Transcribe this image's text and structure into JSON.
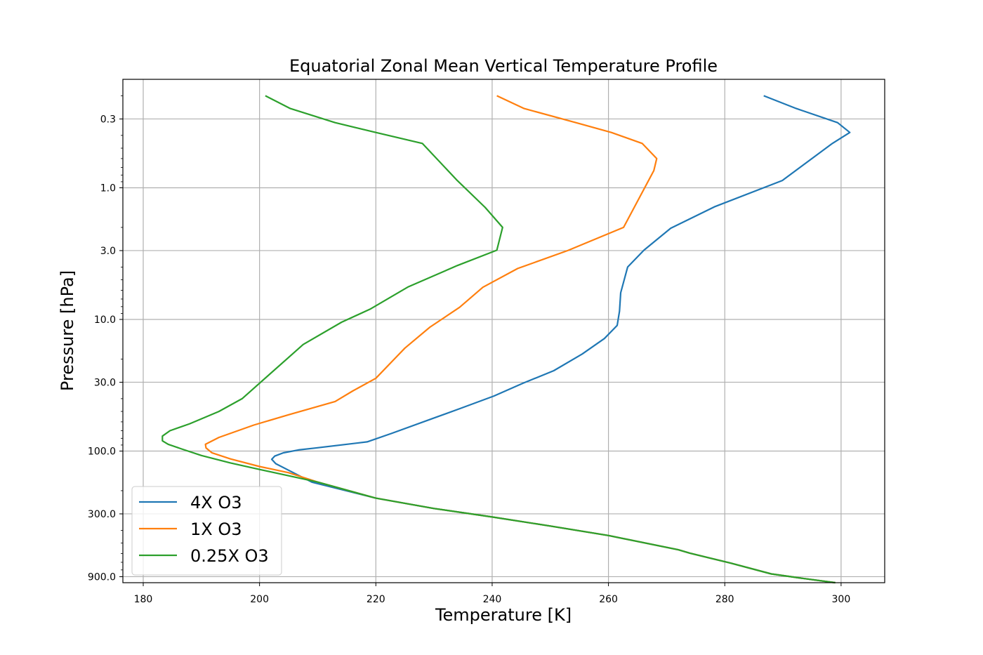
{
  "chart_data": {
    "type": "line",
    "title": "Equatorial Zonal Mean Vertical Temperature Profile",
    "xlabel": "Temperature [K]",
    "ylabel": "Pressure [hPa]",
    "xlim": [
      176.5,
      307.5
    ],
    "ylim_pressure_log": [
      0.15,
      1000
    ],
    "y_inverted": true,
    "y_scale": "log",
    "grid": true,
    "legend_position": "lower-left",
    "x_ticks": [
      180,
      200,
      220,
      240,
      260,
      280,
      300
    ],
    "x_tick_labels": [
      "180",
      "200",
      "220",
      "240",
      "260",
      "280",
      "300"
    ],
    "y_ticks": [
      0.3,
      1.0,
      3.0,
      10.0,
      30.0,
      100.0,
      300.0,
      900.0
    ],
    "y_tick_labels": [
      "0.3",
      "1.0",
      "3.0",
      "10.0",
      "30.0",
      "100.0",
      "300.0",
      "900.0"
    ],
    "series": [
      {
        "name": "4X O3",
        "color": "#1f77b4",
        "points": [
          [
            286.7,
            0.2
          ],
          [
            292.3,
            0.25
          ],
          [
            299.4,
            0.32
          ],
          [
            301.5,
            0.38
          ],
          [
            298.5,
            0.46
          ],
          [
            289.9,
            0.88
          ],
          [
            278.3,
            1.39
          ],
          [
            270.7,
            2.03
          ],
          [
            266.1,
            2.98
          ],
          [
            263.3,
            4.0
          ],
          [
            262.1,
            6.27
          ],
          [
            261.9,
            8.66
          ],
          [
            261.5,
            11.1
          ],
          [
            259.3,
            13.97
          ],
          [
            255.5,
            18.3
          ],
          [
            250.6,
            24.5
          ],
          [
            245.3,
            30.55
          ],
          [
            240.3,
            38.2
          ],
          [
            234.5,
            47.5
          ],
          [
            229.9,
            56.3
          ],
          [
            222.7,
            73.5
          ],
          [
            218.5,
            85.1
          ],
          [
            209.6,
            94.9
          ],
          [
            206.7,
            98.1
          ],
          [
            204.1,
            103.1
          ],
          [
            202.6,
            109.2
          ],
          [
            202.1,
            115.5
          ],
          [
            202.8,
            124.7
          ],
          [
            205.0,
            139.9
          ],
          [
            209.0,
            172.3
          ],
          [
            220.0,
            228.0
          ],
          [
            230.0,
            273.0
          ],
          [
            240.0,
            317.0
          ],
          [
            250.0,
            371.0
          ],
          [
            260.0,
            438.0
          ],
          [
            272.0,
            562.0
          ],
          [
            274.0,
            596.0
          ],
          [
            281.0,
            710.0
          ],
          [
            288.0,
            858.0
          ],
          [
            293.0,
            922.0
          ],
          [
            299.0,
            1000.0
          ]
        ]
      },
      {
        "name": "1X O3",
        "color": "#ff7f0e",
        "points": [
          [
            240.8,
            0.2
          ],
          [
            245.5,
            0.25
          ],
          [
            254.4,
            0.32
          ],
          [
            260.5,
            0.38
          ],
          [
            265.8,
            0.46
          ],
          [
            268.3,
            0.6
          ],
          [
            267.8,
            0.74
          ],
          [
            262.6,
            2.0
          ],
          [
            253.0,
            3.0
          ],
          [
            244.4,
            4.1
          ],
          [
            238.4,
            5.7
          ],
          [
            234.4,
            8.09
          ],
          [
            229.3,
            11.45
          ],
          [
            225.0,
            16.5
          ],
          [
            220.0,
            28.0
          ],
          [
            216.0,
            35.0
          ],
          [
            213.0,
            42.0
          ],
          [
            205.0,
            53.0
          ],
          [
            199.0,
            63.5
          ],
          [
            193.0,
            78.8
          ],
          [
            190.7,
            88.9
          ],
          [
            190.8,
            94.6
          ],
          [
            191.8,
            103.0
          ],
          [
            195.0,
            114.8
          ],
          [
            200.0,
            131.0
          ],
          [
            205.0,
            146.0
          ],
          [
            210.0,
            172.0
          ],
          [
            220.0,
            228.0
          ],
          [
            230.0,
            273.0
          ],
          [
            240.0,
            317.0
          ],
          [
            250.0,
            371.0
          ],
          [
            260.0,
            438.0
          ],
          [
            272.0,
            562.0
          ],
          [
            274.0,
            596.0
          ],
          [
            281.0,
            710.0
          ],
          [
            288.0,
            858.0
          ],
          [
            293.0,
            922.0
          ],
          [
            299.0,
            1000.0
          ]
        ]
      },
      {
        "name": "0.25X O3",
        "color": "#2ca02c",
        "points": [
          [
            201.0,
            0.2
          ],
          [
            205.3,
            0.25
          ],
          [
            213.0,
            0.32
          ],
          [
            220.0,
            0.38
          ],
          [
            228.0,
            0.46
          ],
          [
            234.0,
            0.88
          ],
          [
            238.8,
            1.41
          ],
          [
            241.8,
            2.0
          ],
          [
            240.8,
            2.98
          ],
          [
            234.0,
            3.9
          ],
          [
            225.5,
            5.68
          ],
          [
            219.0,
            8.36
          ],
          [
            214.1,
            10.5
          ],
          [
            207.5,
            15.5
          ],
          [
            197.0,
            40.0
          ],
          [
            193.0,
            50.0
          ],
          [
            188.0,
            62.0
          ],
          [
            184.6,
            70.0
          ],
          [
            183.3,
            77.0
          ],
          [
            183.3,
            83.6
          ],
          [
            184.3,
            88.9
          ],
          [
            186.6,
            96.4
          ],
          [
            190.0,
            108.0
          ],
          [
            195.0,
            123.0
          ],
          [
            200.0,
            138.0
          ],
          [
            210.0,
            172.0
          ],
          [
            220.0,
            228.0
          ],
          [
            230.0,
            273.0
          ],
          [
            240.0,
            317.0
          ],
          [
            250.0,
            371.0
          ],
          [
            260.0,
            438.0
          ],
          [
            272.0,
            562.0
          ],
          [
            274.0,
            596.0
          ],
          [
            281.0,
            710.0
          ],
          [
            288.0,
            858.0
          ],
          [
            293.0,
            922.0
          ],
          [
            299.0,
            1000.0
          ]
        ]
      }
    ]
  }
}
